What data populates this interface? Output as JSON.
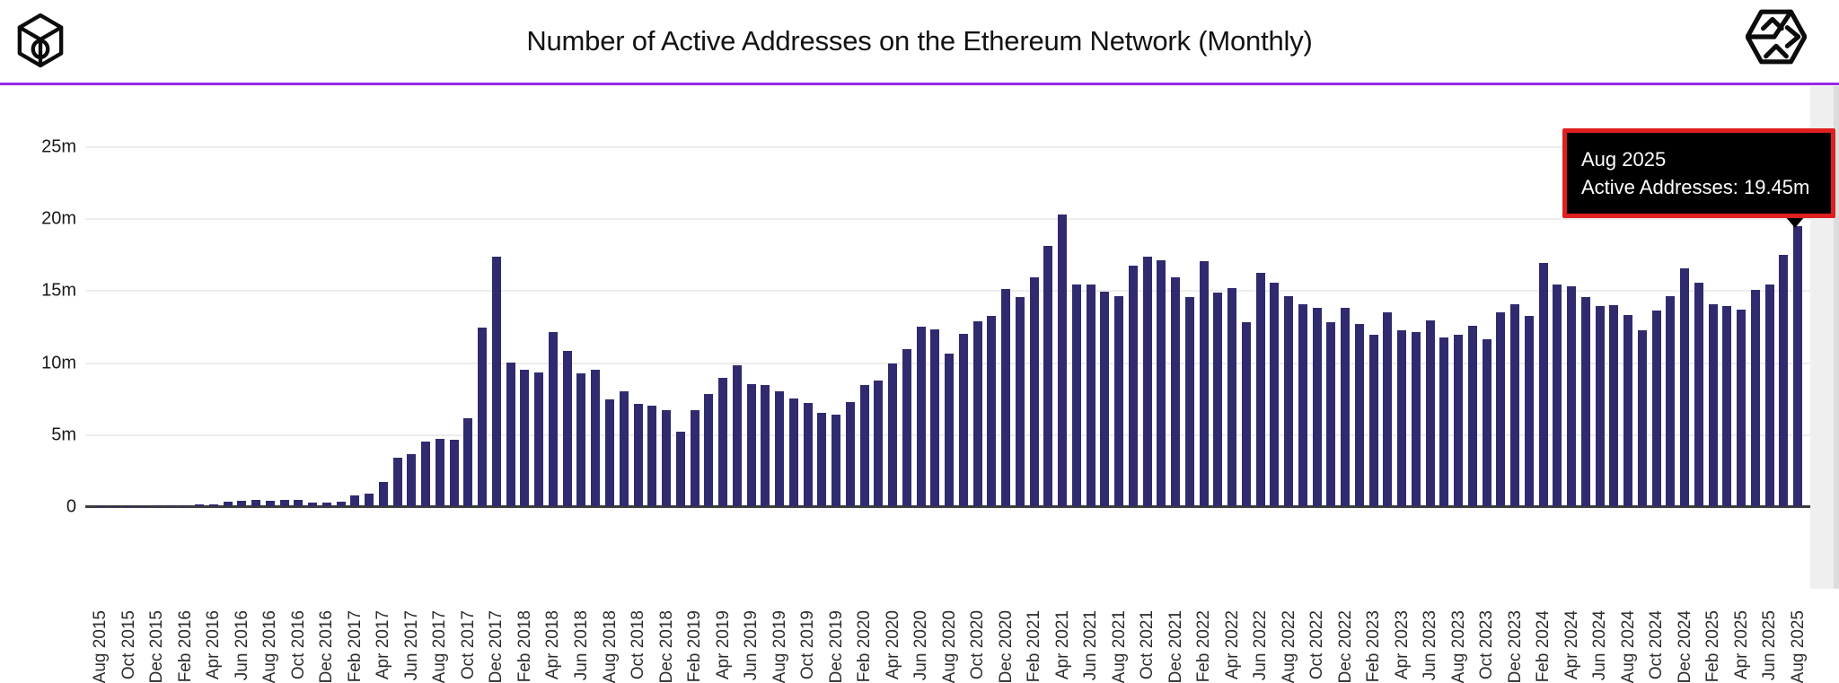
{
  "header": {
    "title": "Number of Active Addresses on the Ethereum Network (Monthly)",
    "logo_icon": "cube-ring-logo",
    "menu_icon": "hexagon-cube-icon",
    "accent_line_color": "#9628e6"
  },
  "tooltip": {
    "title": "Aug 2025",
    "line2": "Active Addresses: 19.45m",
    "bg_color": "#000000",
    "highlight_border_color": "#e01f1f"
  },
  "chart_data": {
    "type": "bar",
    "title": "Number of Active Addresses on the Ethereum Network (Monthly)",
    "ylabel": "",
    "xlabel": "",
    "unit": "m",
    "bar_color": "#2f2b6e",
    "grid": true,
    "ylim": [
      0,
      25
    ],
    "yticks": [
      "0",
      "5m",
      "10m",
      "15m",
      "20m",
      "25m"
    ],
    "x_tick_every": 2,
    "highlighted_index": 120,
    "highlighted_value_label": "19.45m",
    "categories": [
      "Aug 2015",
      "Sep 2015",
      "Oct 2015",
      "Nov 2015",
      "Dec 2015",
      "Jan 2016",
      "Feb 2016",
      "Mar 2016",
      "Apr 2016",
      "May 2016",
      "Jun 2016",
      "Jul 2016",
      "Aug 2016",
      "Sep 2016",
      "Oct 2016",
      "Nov 2016",
      "Dec 2016",
      "Jan 2017",
      "Feb 2017",
      "Mar 2017",
      "Apr 2017",
      "May 2017",
      "Jun 2017",
      "Jul 2017",
      "Aug 2017",
      "Sep 2017",
      "Oct 2017",
      "Nov 2017",
      "Dec 2017",
      "Jan 2018",
      "Feb 2018",
      "Mar 2018",
      "Apr 2018",
      "May 2018",
      "Jun 2018",
      "Jul 2018",
      "Aug 2018",
      "Sep 2018",
      "Oct 2018",
      "Nov 2018",
      "Dec 2018",
      "Jan 2019",
      "Feb 2019",
      "Mar 2019",
      "Apr 2019",
      "May 2019",
      "Jun 2019",
      "Jul 2019",
      "Aug 2019",
      "Sep 2019",
      "Oct 2019",
      "Nov 2019",
      "Dec 2019",
      "Jan 2020",
      "Feb 2020",
      "Mar 2020",
      "Apr 2020",
      "May 2020",
      "Jun 2020",
      "Jul 2020",
      "Aug 2020",
      "Sep 2020",
      "Oct 2020",
      "Nov 2020",
      "Dec 2020",
      "Jan 2021",
      "Feb 2021",
      "Mar 2021",
      "Apr 2021",
      "May 2021",
      "Jun 2021",
      "Jul 2021",
      "Aug 2021",
      "Sep 2021",
      "Oct 2021",
      "Nov 2021",
      "Dec 2021",
      "Jan 2022",
      "Feb 2022",
      "Mar 2022",
      "Apr 2022",
      "May 2022",
      "Jun 2022",
      "Jul 2022",
      "Aug 2022",
      "Sep 2022",
      "Oct 2022",
      "Nov 2022",
      "Dec 2022",
      "Jan 2023",
      "Feb 2023",
      "Mar 2023",
      "Apr 2023",
      "May 2023",
      "Jun 2023",
      "Jul 2023",
      "Aug 2023",
      "Sep 2023",
      "Oct 2023",
      "Nov 2023",
      "Dec 2023",
      "Jan 2024",
      "Feb 2024",
      "Mar 2024",
      "Apr 2024",
      "May 2024",
      "Jun 2024",
      "Jul 2024",
      "Aug 2024",
      "Sep 2024",
      "Oct 2024",
      "Nov 2024",
      "Dec 2024",
      "Jan 2025",
      "Feb 2025",
      "Mar 2025",
      "Apr 2025",
      "May 2025",
      "Jun 2025",
      "Jul 2025",
      "Aug 2025"
    ],
    "values": [
      0.02,
      0.03,
      0.03,
      0.03,
      0.05,
      0.05,
      0.07,
      0.12,
      0.12,
      0.3,
      0.35,
      0.45,
      0.4,
      0.45,
      0.45,
      0.28,
      0.28,
      0.3,
      0.75,
      0.9,
      1.7,
      3.4,
      3.65,
      4.5,
      4.65,
      4.6,
      6.1,
      12.4,
      17.35,
      10.0,
      9.5,
      9.3,
      12.1,
      10.8,
      9.2,
      9.45,
      7.4,
      8.0,
      7.1,
      7.0,
      6.65,
      5.2,
      6.7,
      7.8,
      8.9,
      9.8,
      8.5,
      8.4,
      8.0,
      7.5,
      7.15,
      6.5,
      6.35,
      7.25,
      8.4,
      8.75,
      9.9,
      10.9,
      12.45,
      12.3,
      10.6,
      11.95,
      12.85,
      13.2,
      15.1,
      14.5,
      15.9,
      18.1,
      20.25,
      15.4,
      15.4,
      14.9,
      14.6,
      16.7,
      17.35,
      17.1,
      15.9,
      14.5,
      17.0,
      14.85,
      15.15,
      12.8,
      16.2,
      15.5,
      14.6,
      14.0,
      13.8,
      12.8,
      13.8,
      12.65,
      11.9,
      13.5,
      12.25,
      12.1,
      12.9,
      11.7,
      11.9,
      12.55,
      11.6,
      13.45,
      14.0,
      13.2,
      16.9,
      15.4,
      15.3,
      14.5,
      13.9,
      13.95,
      13.3,
      12.25,
      13.6,
      14.6,
      16.5,
      15.55,
      14.0,
      13.9,
      13.65,
      15.0,
      15.4,
      17.45,
      19.45
    ]
  }
}
